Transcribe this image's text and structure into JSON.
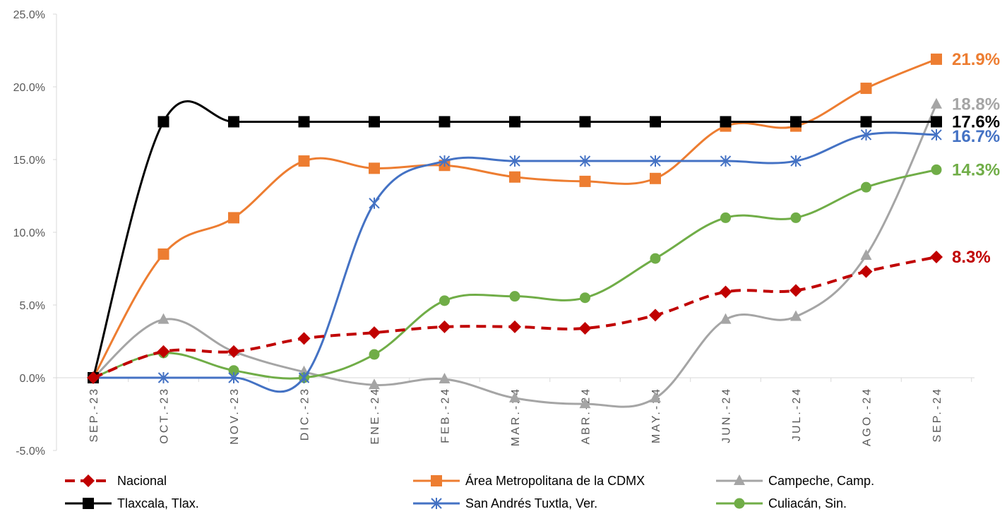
{
  "chart_data": {
    "type": "line",
    "categories": [
      "SEP.-23",
      "OCT.-23",
      "NOV.-23",
      "DIC.-23",
      "ENE.-24",
      "FEB.-24",
      "MAR.-24",
      "ABR.-24",
      "MAY.-24",
      "JUN.-24",
      "JUL.-24",
      "AGO.-24",
      "SEP.-24"
    ],
    "ylim": [
      -5,
      25
    ],
    "yticks": [
      "-5.0%",
      "0.0%",
      "5.0%",
      "10.0%",
      "15.0%",
      "20.0%",
      "25.0%"
    ],
    "grid": false,
    "legend_position": "bottom",
    "series": [
      {
        "name": "Nacional",
        "color": "#C00000",
        "marker": "diamond",
        "dash": true,
        "end_label": "8.3%",
        "values": [
          0,
          1.8,
          1.8,
          2.7,
          3.1,
          3.5,
          3.5,
          3.4,
          4.3,
          5.9,
          6.0,
          7.3,
          8.3
        ]
      },
      {
        "name": "Área Metropolitana de la CDMX",
        "color": "#ED7D31",
        "marker": "square",
        "dash": false,
        "end_label": "21.9%",
        "values": [
          0,
          8.5,
          11.0,
          14.9,
          14.4,
          14.6,
          13.8,
          13.5,
          13.7,
          17.3,
          17.3,
          19.9,
          21.9
        ]
      },
      {
        "name": "Campeche, Camp.",
        "color": "#A5A5A5",
        "marker": "triangle",
        "dash": false,
        "end_label": "18.8%",
        "values": [
          0,
          4.0,
          1.8,
          0.4,
          -0.5,
          -0.1,
          -1.4,
          -1.8,
          -1.4,
          4.0,
          4.2,
          8.4,
          18.8
        ]
      },
      {
        "name": "Tlaxcala, Tlax.",
        "color": "#000000",
        "marker": "square",
        "dash": false,
        "end_label": "17.6%",
        "values": [
          0,
          17.6,
          17.6,
          17.6,
          17.6,
          17.6,
          17.6,
          17.6,
          17.6,
          17.6,
          17.6,
          17.6,
          17.6
        ]
      },
      {
        "name": "San Andrés Tuxtla, Ver.",
        "color": "#4472C4",
        "marker": "star",
        "dash": false,
        "end_label": "16.7%",
        "values": [
          0,
          0,
          0,
          0,
          12.0,
          14.9,
          14.9,
          14.9,
          14.9,
          14.9,
          14.9,
          16.7,
          16.7
        ]
      },
      {
        "name": "Culiacán, Sin.",
        "color": "#70AD47",
        "marker": "circle",
        "dash": false,
        "end_label": "14.3%",
        "values": [
          0,
          1.7,
          0.5,
          0,
          1.6,
          5.3,
          5.6,
          5.5,
          8.2,
          11.0,
          11.0,
          13.1,
          14.3
        ]
      }
    ]
  }
}
